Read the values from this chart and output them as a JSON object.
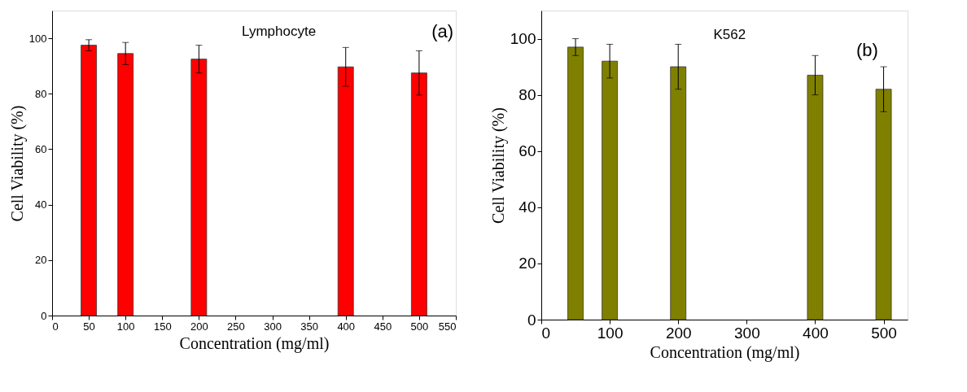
{
  "chart_data": [
    {
      "type": "bar",
      "x": [
        50,
        100,
        200,
        400,
        500
      ],
      "values": [
        97.5,
        94.5,
        92.5,
        89.7,
        87.5
      ],
      "errors": [
        2,
        4,
        5,
        7,
        8
      ],
      "color": "#ff0000",
      "xlabel": "Concentration (mg/ml)",
      "ylabel": "Cell Viability (%)",
      "annotations": [
        "Lymphocyte",
        "(a)"
      ],
      "xlim": [
        0,
        550
      ],
      "xticks": [
        0,
        50,
        100,
        150,
        200,
        250,
        300,
        350,
        400,
        450,
        500,
        550
      ],
      "ylim": [
        0,
        110
      ],
      "yticks": [
        0,
        20,
        40,
        60,
        80,
        100
      ]
    },
    {
      "type": "bar",
      "x": [
        50,
        100,
        200,
        400,
        500
      ],
      "values": [
        97,
        92,
        90,
        87,
        82
      ],
      "errors": [
        3,
        6,
        8,
        7,
        8
      ],
      "color": "#808000",
      "xlabel": "Concentration (mg/ml)",
      "ylabel": "Cell Viability (%)",
      "annotations": [
        "K562",
        "(b)"
      ],
      "xlim": [
        0,
        535
      ],
      "xticks": [
        0,
        100,
        200,
        300,
        400,
        500
      ],
      "ylim": [
        0,
        110
      ],
      "yticks": [
        0,
        20,
        40,
        60,
        80,
        100
      ]
    }
  ]
}
